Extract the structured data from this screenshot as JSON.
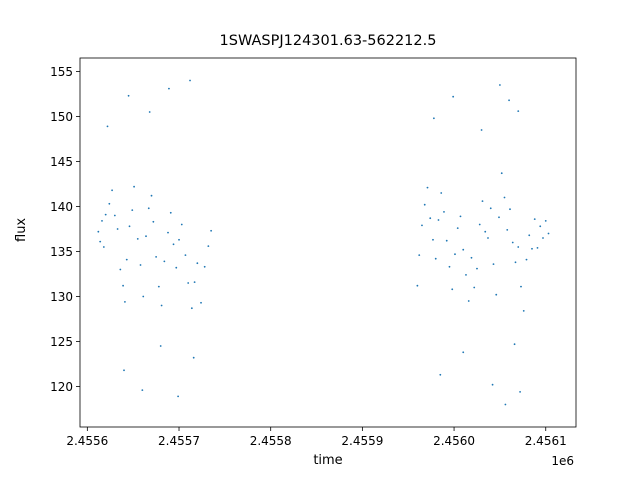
{
  "chart_data": {
    "type": "scatter",
    "title": "1SWASPJ124301.63-562212.5",
    "xlabel": "time",
    "ylabel": "flux",
    "x_offset_label": "1e6",
    "xlim": [
      2455592,
      2456133
    ],
    "ylim": [
      115.5,
      156.5
    ],
    "x_ticks": [
      2455600,
      2455700,
      2455800,
      2455900,
      2456000,
      2456100
    ],
    "x_tick_labels": [
      "2.4556",
      "2.4557",
      "2.4558",
      "2.4559",
      "2.4560",
      "2.4561"
    ],
    "y_ticks": [
      120,
      125,
      130,
      135,
      140,
      145,
      150,
      155
    ],
    "y_tick_labels": [
      "120",
      "125",
      "130",
      "135",
      "140",
      "145",
      "150",
      "155"
    ],
    "grid": false,
    "marker_color": "#1f77b4",
    "series": [
      {
        "name": "",
        "points": [
          [
            2455612,
            137.2
          ],
          [
            2455614,
            136.1
          ],
          [
            2455616,
            138.4
          ],
          [
            2455618,
            135.5
          ],
          [
            2455620,
            139.1
          ],
          [
            2455624,
            140.3
          ],
          [
            2455627,
            141.8
          ],
          [
            2455630,
            139.0
          ],
          [
            2455633,
            137.5
          ],
          [
            2455636,
            133.0
          ],
          [
            2455639,
            131.2
          ],
          [
            2455641,
            129.4
          ],
          [
            2455643,
            134.1
          ],
          [
            2455646,
            137.8
          ],
          [
            2455649,
            139.6
          ],
          [
            2455651,
            142.2
          ],
          [
            2455655,
            136.4
          ],
          [
            2455658,
            133.5
          ],
          [
            2455661,
            130.0
          ],
          [
            2455664,
            136.7
          ],
          [
            2455667,
            139.8
          ],
          [
            2455670,
            141.2
          ],
          [
            2455672,
            138.3
          ],
          [
            2455675,
            134.4
          ],
          [
            2455678,
            131.1
          ],
          [
            2455681,
            129.0
          ],
          [
            2455684,
            133.9
          ],
          [
            2455688,
            137.1
          ],
          [
            2455691,
            139.3
          ],
          [
            2455694,
            135.8
          ],
          [
            2455697,
            133.2
          ],
          [
            2455700,
            136.3
          ],
          [
            2455703,
            138.0
          ],
          [
            2455707,
            134.6
          ],
          [
            2455710,
            131.5
          ],
          [
            2455714,
            128.7
          ],
          [
            2455717,
            131.6
          ],
          [
            2455720,
            133.7
          ],
          [
            2455724,
            129.3
          ],
          [
            2455728,
            133.3
          ],
          [
            2455732,
            135.6
          ],
          [
            2455735,
            137.3
          ],
          [
            2455622,
            148.9
          ],
          [
            2455645,
            152.3
          ],
          [
            2455668,
            150.5
          ],
          [
            2455689,
            153.1
          ],
          [
            2455712,
            154.0
          ],
          [
            2455640,
            121.8
          ],
          [
            2455660,
            119.6
          ],
          [
            2455680,
            124.5
          ],
          [
            2455699,
            118.9
          ],
          [
            2455716,
            123.2
          ],
          [
            2455960,
            131.2
          ],
          [
            2455962,
            134.6
          ],
          [
            2455965,
            137.9
          ],
          [
            2455968,
            140.2
          ],
          [
            2455971,
            142.1
          ],
          [
            2455974,
            138.7
          ],
          [
            2455977,
            136.3
          ],
          [
            2455980,
            134.2
          ],
          [
            2455983,
            138.5
          ],
          [
            2455986,
            141.5
          ],
          [
            2455989,
            139.4
          ],
          [
            2455992,
            136.2
          ],
          [
            2455995,
            133.3
          ],
          [
            2455998,
            130.8
          ],
          [
            2456001,
            134.7
          ],
          [
            2456004,
            137.6
          ],
          [
            2456007,
            138.9
          ],
          [
            2456010,
            135.2
          ],
          [
            2456013,
            132.4
          ],
          [
            2456016,
            129.5
          ],
          [
            2456019,
            134.3
          ],
          [
            2456022,
            131.0
          ],
          [
            2456025,
            133.1
          ],
          [
            2456028,
            138.0
          ],
          [
            2456031,
            140.6
          ],
          [
            2456034,
            137.2
          ],
          [
            2456037,
            136.5
          ],
          [
            2456040,
            139.8
          ],
          [
            2456043,
            133.6
          ],
          [
            2456046,
            130.2
          ],
          [
            2456049,
            138.8
          ],
          [
            2456052,
            143.7
          ],
          [
            2456055,
            141.0
          ],
          [
            2456058,
            137.4
          ],
          [
            2456061,
            139.7
          ],
          [
            2456064,
            136.0
          ],
          [
            2456067,
            133.8
          ],
          [
            2456070,
            135.5
          ],
          [
            2456073,
            131.1
          ],
          [
            2456076,
            128.4
          ],
          [
            2456079,
            134.1
          ],
          [
            2456082,
            136.8
          ],
          [
            2456085,
            135.3
          ],
          [
            2456088,
            138.6
          ],
          [
            2456091,
            135.4
          ],
          [
            2456094,
            137.8
          ],
          [
            2456097,
            136.5
          ],
          [
            2456100,
            138.4
          ],
          [
            2456103,
            137.0
          ],
          [
            2455978,
            149.8
          ],
          [
            2455999,
            152.2
          ],
          [
            2456030,
            148.5
          ],
          [
            2456050,
            153.5
          ],
          [
            2456060,
            151.8
          ],
          [
            2456070,
            150.6
          ],
          [
            2455985,
            121.3
          ],
          [
            2456010,
            123.8
          ],
          [
            2456042,
            120.2
          ],
          [
            2456056,
            118.0
          ],
          [
            2456066,
            124.7
          ],
          [
            2456072,
            119.4
          ]
        ]
      }
    ]
  }
}
